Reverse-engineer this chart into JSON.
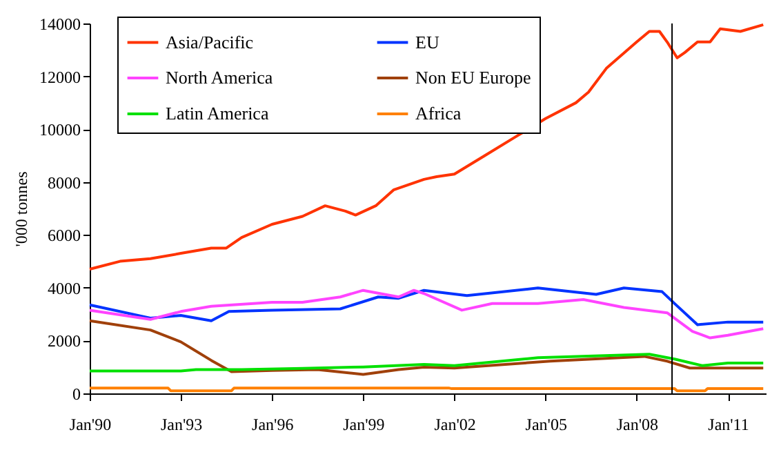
{
  "chart_data": {
    "type": "line",
    "ylabel": "'000 tonnes",
    "ylim": [
      0,
      14000
    ],
    "yticks": [
      0,
      2000,
      4000,
      6000,
      8000,
      10000,
      12000,
      14000
    ],
    "xlim": [
      "1990-01",
      "2012-04"
    ],
    "xticks": [
      {
        "value": "1990-01",
        "label": "Jan'90"
      },
      {
        "value": "1993-01",
        "label": "Jan'93"
      },
      {
        "value": "1996-01",
        "label": "Jan'96"
      },
      {
        "value": "1999-01",
        "label": "Jan'99"
      },
      {
        "value": "2002-01",
        "label": "Jan'02"
      },
      {
        "value": "2005-01",
        "label": "Jan'05"
      },
      {
        "value": "2008-01",
        "label": "Jan'08"
      },
      {
        "value": "2011-01",
        "label": "Jan'11"
      }
    ],
    "legend": "top left",
    "marker": "none",
    "line_style": "solid",
    "ref_lines": [
      {
        "axis": "x",
        "value": "2009-03",
        "color": "#000000"
      }
    ],
    "series": [
      {
        "name": "Asia/Pacific",
        "color": "#ff3300",
        "x": [
          "1990-01",
          "1991-01",
          "1992-01",
          "1993-01",
          "1994-01",
          "1994-07",
          "1995-01",
          "1996-01",
          "1997-01",
          "1997-10",
          "1998-06",
          "1998-10",
          "1999-06",
          "2000-01",
          "2001-01",
          "2001-06",
          "2002-01",
          "2003-01",
          "2004-01",
          "2005-01",
          "2006-01",
          "2006-06",
          "2007-01",
          "2008-01",
          "2008-06",
          "2008-10",
          "2009-01",
          "2009-05",
          "2009-08",
          "2010-01",
          "2010-06",
          "2010-10",
          "2011-06",
          "2012-03"
        ],
        "values": [
          4700,
          5000,
          5100,
          5300,
          5500,
          5500,
          5900,
          6400,
          6700,
          7100,
          6900,
          6750,
          7100,
          7700,
          8100,
          8200,
          8300,
          9000,
          9700,
          10400,
          11000,
          11400,
          12300,
          13300,
          13700,
          13700,
          13300,
          12700,
          12900,
          13300,
          13300,
          13800,
          13700,
          13950
        ]
      },
      {
        "name": "EU",
        "color": "#0033ff",
        "x": [
          "1990-01",
          "1992-01",
          "1993-01",
          "1994-01",
          "1994-08",
          "1996-01",
          "1998-04",
          "1999-07",
          "2000-03",
          "2001-01",
          "2002-06",
          "2004-10",
          "2006-09",
          "2007-08",
          "2008-11",
          "2009-04",
          "2010-01",
          "2011-01",
          "2012-03"
        ],
        "values": [
          3350,
          2850,
          2950,
          2750,
          3100,
          3150,
          3200,
          3650,
          3600,
          3900,
          3700,
          3990,
          3750,
          3990,
          3850,
          3400,
          2600,
          2700,
          2700
        ]
      },
      {
        "name": "North America",
        "color": "#ff44ff",
        "x": [
          "1990-01",
          "1992-01",
          "1993-01",
          "1994-01",
          "1996-01",
          "1997-01",
          "1998-04",
          "1999-01",
          "2000-03",
          "2000-09",
          "2001-01",
          "2002-04",
          "2003-04",
          "2004-10",
          "2006-04",
          "2007-08",
          "2009-01",
          "2009-11",
          "2010-06",
          "2011-01",
          "2012-03"
        ],
        "values": [
          3150,
          2800,
          3100,
          3300,
          3450,
          3450,
          3650,
          3900,
          3650,
          3900,
          3780,
          3150,
          3400,
          3400,
          3550,
          3250,
          3050,
          2350,
          2100,
          2200,
          2450
        ]
      },
      {
        "name": "Non EU Europe",
        "color": "#a0400a",
        "x": [
          "1990-01",
          "1992-01",
          "1993-01",
          "1994-01",
          "1994-09",
          "1996-01",
          "1997-07",
          "1999-01",
          "2000-03",
          "2001-01",
          "2002-01",
          "2005-03",
          "2008-04",
          "2009-01",
          "2009-10",
          "2012-03"
        ],
        "values": [
          2750,
          2400,
          1950,
          1250,
          820,
          870,
          900,
          720,
          900,
          990,
          960,
          1220,
          1400,
          1220,
          960,
          960
        ]
      },
      {
        "name": "Latin America",
        "color": "#00e000",
        "x": [
          "1990-01",
          "1993-01",
          "1993-07",
          "1995-01",
          "1997-01",
          "1999-01",
          "2001-01",
          "2002-01",
          "2004-10",
          "2008-06",
          "2009-04",
          "2010-03",
          "2011-01",
          "2012-03"
        ],
        "values": [
          850,
          850,
          900,
          900,
          950,
          1000,
          1100,
          1050,
          1350,
          1480,
          1300,
          1050,
          1150,
          1150
        ]
      },
      {
        "name": "Africa",
        "color": "#ff8000",
        "x": [
          "1990-01",
          "1992-08",
          "1992-09",
          "1994-09",
          "1994-10",
          "2001-11",
          "2001-12",
          "2009-04",
          "2009-05",
          "2010-04",
          "2010-05",
          "2012-03"
        ],
        "values": [
          200,
          200,
          100,
          100,
          200,
          200,
          180,
          180,
          100,
          100,
          180,
          180
        ]
      }
    ]
  }
}
